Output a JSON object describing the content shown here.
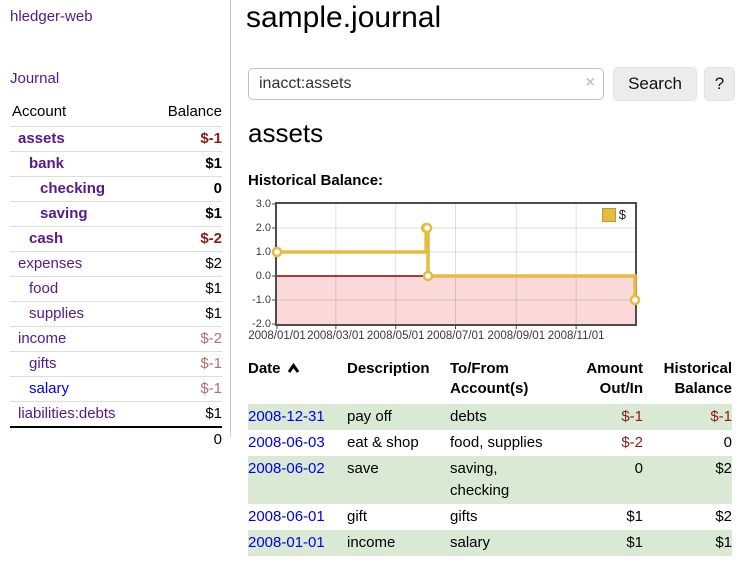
{
  "app": {
    "brand": "hledger-web"
  },
  "nav": {
    "journal": "Journal"
  },
  "sidebar": {
    "header": {
      "account": "Account",
      "balance": "Balance"
    },
    "rows": [
      {
        "account": "assets",
        "balance": "$-1"
      },
      {
        "account": "bank",
        "balance": "$1"
      },
      {
        "account": "checking",
        "balance": "0"
      },
      {
        "account": "saving",
        "balance": "$1"
      },
      {
        "account": "cash",
        "balance": "$-2"
      },
      {
        "account": "expenses",
        "balance": "$2"
      },
      {
        "account": "food",
        "balance": "$1"
      },
      {
        "account": "supplies",
        "balance": "$1"
      },
      {
        "account": "income",
        "balance": "$-2"
      },
      {
        "account": "gifts",
        "balance": "$-1"
      },
      {
        "account": "salary",
        "balance": "$-1"
      },
      {
        "account": "liabilities:debts",
        "balance": "$1"
      }
    ],
    "total": "0"
  },
  "main": {
    "title": "sample.journal",
    "search": {
      "value": "inacct:assets",
      "clear_icon": "×",
      "search_button": "Search",
      "help_button": "?"
    },
    "account_heading": "assets",
    "chart_title": "Historical Balance:"
  },
  "chart_data": {
    "type": "line",
    "step": true,
    "title": "Historical Balance",
    "legend_label": "$",
    "legend_position": "top-right",
    "grid": true,
    "x": [
      "2008-01-01",
      "2008-06-01",
      "2008-06-02",
      "2008-06-03",
      "2008-12-31"
    ],
    "series": [
      {
        "name": "$",
        "values": [
          1,
          2,
          2,
          0,
          -1
        ]
      }
    ],
    "xlim": [
      "2008-01-01",
      "2008-12-31"
    ],
    "ylim": [
      -2,
      3
    ],
    "yticks": [
      "3.0",
      "2.0",
      "1.0",
      "0.0",
      "-1.0",
      "-2.0"
    ],
    "xticks": [
      "2008/01/01",
      "2008/03/01",
      "2008/05/01",
      "2008/07/01",
      "2008/09/01",
      "2008/11/01"
    ],
    "colors": {
      "line": "#e6bb40",
      "marker_fill": "#ffffff",
      "negative_region": "#fbd9d9",
      "zero_line": "#8b0000",
      "grid": "rgba(0,0,0,0.13)",
      "border": "#4d4d4d"
    }
  },
  "register": {
    "headers": {
      "date": "Date",
      "description": "Description",
      "accounts": "To/From\nAccount(s)",
      "amount": "Amount\nOut/In",
      "balance": "Historical\nBalance"
    },
    "rows": [
      {
        "date": "2008-12-31",
        "description": "pay off",
        "accounts": "debts",
        "amount": "$-1",
        "balance": "$-1"
      },
      {
        "date": "2008-06-03",
        "description": "eat & shop",
        "accounts": "food, supplies",
        "amount": "$-2",
        "balance": "0"
      },
      {
        "date": "2008-06-02",
        "description": "save",
        "accounts": "saving,\nchecking",
        "amount": "0",
        "balance": "$2"
      },
      {
        "date": "2008-06-01",
        "description": "gift",
        "accounts": "gifts",
        "amount": "$1",
        "balance": "$2"
      },
      {
        "date": "2008-01-01",
        "description": "income",
        "accounts": "salary",
        "amount": "$1",
        "balance": "$1"
      }
    ]
  }
}
